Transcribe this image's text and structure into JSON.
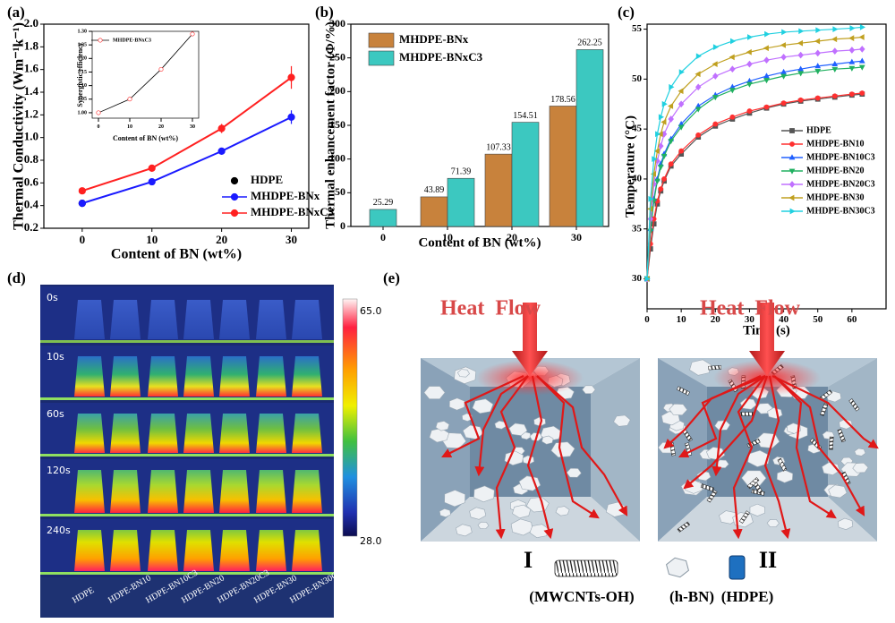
{
  "chart_data": [
    {
      "type": "line",
      "panel_label": "(a)",
      "xlabel": "Content of BN (wt%)",
      "ylabel": "Thermal Conductivity (Wm⁻¹k⁻¹)",
      "x": [
        0,
        10,
        20,
        30
      ],
      "xlim": [
        -5.5,
        32.5
      ],
      "ylim": [
        0.2,
        2.0
      ],
      "xticks": [
        0,
        10,
        20,
        30
      ],
      "yticks": [
        0.2,
        0.4,
        0.6,
        0.8,
        {
          "value": 1,
          "label": "1.0"
        },
        1.2,
        1.4,
        1.6,
        1.8,
        {
          "value": 2,
          "label": "2.0"
        }
      ],
      "legend": "lower right",
      "series": [
        {
          "name": "HDPE",
          "color": "#000000",
          "marker": "circle",
          "values": [
            0.42,
            null,
            null,
            null
          ]
        },
        {
          "name": "MHDPE-BNx",
          "color": "#1a1aff",
          "marker": "circle",
          "values": [
            0.42,
            0.61,
            0.88,
            1.18
          ],
          "errors": [
            0.01,
            0.02,
            0.03,
            0.06
          ]
        },
        {
          "name": "MHDPE-BNxC3",
          "color": "#ff2020",
          "marker": "circle",
          "values": [
            0.53,
            0.73,
            1.08,
            1.53
          ],
          "errors": [
            0.02,
            0.03,
            0.04,
            0.1
          ]
        }
      ]
    },
    {
      "type": "line",
      "xlabel": "Content of BN (wt%)",
      "ylabel": "Synergistic efficiency",
      "x": [
        0,
        10,
        20,
        30
      ],
      "xlim": [
        -2,
        32
      ],
      "ylim": [
        0.98,
        1.3
      ],
      "xticks": [
        0,
        10,
        20,
        30
      ],
      "yticks": [
        {
          "value": 1,
          "label": "1.00"
        },
        1.05,
        {
          "value": 1.1,
          "label": "1.10"
        },
        1.15,
        {
          "value": 1.2,
          "label": "1.20"
        },
        1.25,
        {
          "value": 1.3,
          "label": "1.30"
        }
      ],
      "legend": "upper left",
      "series": [
        {
          "name": "MHDPE-BNxC3",
          "color": "#ff2020",
          "line_color": "#000000",
          "marker": "circle",
          "values": [
            1.0,
            1.05,
            1.16,
            1.29
          ]
        }
      ]
    },
    {
      "type": "bar",
      "panel_label": "(b)",
      "xlabel": "Content of BN (wt%)",
      "ylabel": "Thermal enhancement factor (Φ/%)",
      "categories": [
        "0",
        "10",
        "20",
        "30"
      ],
      "ylim": [
        0,
        300
      ],
      "yticks": [
        0,
        50,
        100,
        150,
        200,
        250,
        300
      ],
      "legend": "upper left",
      "series": [
        {
          "name": "MHDPE-BNx",
          "color": "#c8823c",
          "values": [
            null,
            43.89,
            107.33,
            178.56
          ]
        },
        {
          "name": "MHDPE-BNxC3",
          "color": "#3cc8c0",
          "values": [
            25.29,
            71.39,
            154.51,
            262.25
          ]
        }
      ]
    },
    {
      "type": "line",
      "panel_label": "(c)",
      "xlabel": "Time (s)",
      "ylabel": "Temperature (°C)",
      "x": [
        0,
        1,
        2,
        3,
        4,
        5,
        7,
        10,
        15,
        20,
        25,
        30,
        35,
        40,
        45,
        50,
        55,
        60,
        63
      ],
      "xlim": [
        0,
        70
      ],
      "ylim": [
        27,
        55.5
      ],
      "xticks": [
        0,
        10,
        20,
        30,
        40,
        50,
        60
      ],
      "yticks": [
        30,
        35,
        40,
        45,
        50,
        55
      ],
      "legend": "center right",
      "series": [
        {
          "name": "HDPE",
          "color": "#555555",
          "marker": "square",
          "values": [
            30,
            33,
            35.5,
            37.5,
            38.8,
            39.8,
            41.3,
            42.5,
            44.2,
            45.3,
            46,
            46.6,
            47.1,
            47.5,
            47.8,
            48,
            48.2,
            48.4,
            48.5
          ]
        },
        {
          "name": "MHDPE-BN10",
          "color": "#ff3030",
          "marker": "circle",
          "values": [
            30,
            33.5,
            36,
            37.8,
            39,
            40,
            41.5,
            42.8,
            44.4,
            45.5,
            46.2,
            46.8,
            47.2,
            47.6,
            47.9,
            48.1,
            48.3,
            48.5,
            48.6
          ]
        },
        {
          "name": "MHDPE-BN10C3",
          "color": "#2060ff",
          "marker": "triangle-up",
          "values": [
            30,
            35,
            38,
            40,
            41.5,
            42.5,
            44,
            45.5,
            47.3,
            48.4,
            49.2,
            49.8,
            50.3,
            50.7,
            51,
            51.3,
            51.5,
            51.7,
            51.8
          ]
        },
        {
          "name": "MHDPE-BN20",
          "color": "#20b060",
          "marker": "triangle-down",
          "values": [
            30,
            34.8,
            37.8,
            39.8,
            41.2,
            42.3,
            43.8,
            45.2,
            47,
            48.2,
            48.9,
            49.5,
            49.9,
            50.3,
            50.6,
            50.8,
            51,
            51.1,
            51.2
          ]
        },
        {
          "name": "MHDPE-BN20C3",
          "color": "#c070ff",
          "marker": "diamond",
          "values": [
            30,
            36,
            39.5,
            41.8,
            43.3,
            44.5,
            46,
            47.5,
            49.2,
            50.3,
            51,
            51.5,
            51.9,
            52.2,
            52.4,
            52.6,
            52.8,
            52.9,
            53
          ]
        },
        {
          "name": "MHDPE-BN30",
          "color": "#c0a020",
          "marker": "triangle-left",
          "values": [
            30,
            37,
            40.5,
            42.8,
            44.5,
            45.7,
            47.3,
            48.8,
            50.5,
            51.5,
            52.2,
            52.7,
            53.1,
            53.4,
            53.6,
            53.8,
            54,
            54.1,
            54.2
          ]
        },
        {
          "name": "MHDPE-BN30C3",
          "color": "#20d0e0",
          "marker": "triangle-right",
          "values": [
            30,
            38,
            42,
            44.5,
            46.2,
            47.5,
            49.2,
            50.7,
            52.3,
            53.2,
            53.8,
            54.2,
            54.5,
            54.7,
            54.8,
            54.9,
            55,
            55.1,
            55.2
          ]
        }
      ]
    }
  ],
  "panel_d": {
    "label": "(d)",
    "times": [
      "0s",
      "10s",
      "60s",
      "120s",
      "240s"
    ],
    "colorbar": [
      {
        "value": 28,
        "label": "28.0"
      },
      {
        "value": 65,
        "label": "65.0"
      }
    ],
    "samples": [
      "HDPE",
      "HDPE-BN10",
      "HDPE-BN10C3",
      "HDPE-BN20",
      "HDPE-BN20C3",
      "HDPE-BN30",
      "HDPE-BN30C3"
    ]
  },
  "panel_e": {
    "label": "(e)",
    "models": [
      {
        "title": "Heat  Flow",
        "numeral": "I"
      },
      {
        "title": "Heat  Flow",
        "numeral": "II"
      }
    ],
    "legend": [
      "(MWCNTs-OH)",
      "(h-BN)",
      "(HDPE)"
    ]
  }
}
